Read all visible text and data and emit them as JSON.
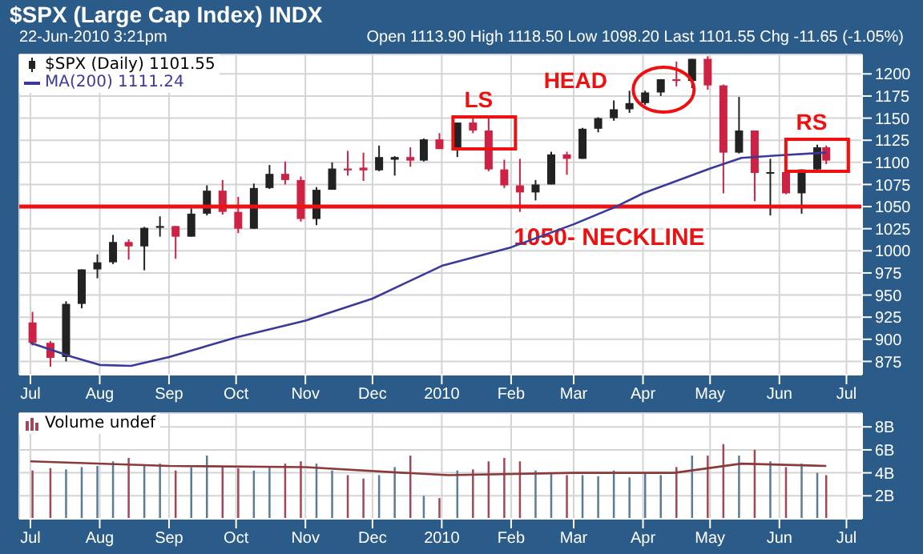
{
  "chart_data": [
    {
      "type": "candlestick",
      "title": "$SPX (Large Cap Index) INDX",
      "subtitle": "22-Jun-2010 3:21pm",
      "annotations": [
        "Open 1113.90 High 1118.50 Low 1098.20 Last 1101.55 Chg -11.65 (-1.05%)",
        "LS",
        "HEAD",
        "RS"
      ],
      "x": [
        "2009-07-02",
        "2009-07-10",
        "2009-07-17",
        "2009-07-24",
        "2009-07-31",
        "2009-08-07",
        "2009-08-14",
        "2009-08-21",
        "2009-08-28",
        "2009-09-04",
        "2009-09-11",
        "2009-09-18",
        "2009-09-25",
        "2009-10-02",
        "2009-10-09",
        "2009-10-16",
        "2009-10-23",
        "2009-10-30",
        "2009-11-06",
        "2009-11-13",
        "2009-11-20",
        "2009-11-27",
        "2009-12-04",
        "2009-12-11",
        "2009-12-18",
        "2009-12-24",
        "2009-12-31",
        "2010-01-08",
        "2010-01-15",
        "2010-01-22",
        "2010-01-29",
        "2010-02-05",
        "2010-02-12",
        "2010-02-19",
        "2010-02-26",
        "2010-03-05",
        "2010-03-12",
        "2010-03-19",
        "2010-03-26",
        "2010-04-02",
        "2010-04-09",
        "2010-04-16",
        "2010-04-23",
        "2010-04-30",
        "2010-05-07",
        "2010-05-14",
        "2010-05-21",
        "2010-05-28",
        "2010-06-04",
        "2010-06-11",
        "2010-06-18",
        "2010-06-22"
      ],
      "series": [
        {
          "name": "$SPX (Daily) 1101.55",
          "color": "#222222",
          "colors": [
            "#cc2244",
            "#cc2244",
            "#222222",
            "#222222",
            "#222222",
            "#222222",
            "#cc2244",
            "#222222",
            "#222222",
            "#cc2244",
            "#222222",
            "#222222",
            "#cc2244",
            "#cc2244",
            "#222222",
            "#222222",
            "#cc2244",
            "#cc2244",
            "#222222",
            "#222222",
            "#cc2244",
            "#cc2244",
            "#222222",
            "#222222",
            "#cc2244",
            "#222222",
            "#cc2244",
            "#222222",
            "#cc2244",
            "#cc2244",
            "#cc2244",
            "#cc2244",
            "#222222",
            "#222222",
            "#cc2244",
            "#222222",
            "#222222",
            "#222222",
            "#222222",
            "#222222",
            "#222222",
            "#cc2244",
            "#222222",
            "#cc2244",
            "#cc2244",
            "#222222",
            "#cc2244",
            "#222222",
            "#cc2244",
            "#222222",
            "#222222",
            "#cc2244"
          ],
          "ohlc": [
            [
              919,
              931,
              893,
              896
            ],
            [
              896,
              898,
              869,
              879
            ],
            [
              880,
              943,
              875,
              940
            ],
            [
              940,
              979,
              935,
              979
            ],
            [
              979,
              996,
              969,
              987
            ],
            [
              987,
              1018,
              985,
              1010
            ],
            [
              1010,
              1013,
              990,
              1005
            ],
            [
              1005,
              1027,
              978,
              1026
            ],
            [
              1026,
              1039,
              1016,
              1028
            ],
            [
              1028,
              1028,
              991,
              1016
            ],
            [
              1016,
              1048,
              1016,
              1042
            ],
            [
              1042,
              1074,
              1040,
              1068
            ],
            [
              1068,
              1080,
              1041,
              1044
            ],
            [
              1044,
              1061,
              1020,
              1025
            ],
            [
              1025,
              1076,
              1025,
              1071
            ],
            [
              1071,
              1097,
              1070,
              1087
            ],
            [
              1087,
              1101,
              1075,
              1080
            ],
            [
              1080,
              1084,
              1033,
              1036
            ],
            [
              1036,
              1072,
              1029,
              1069
            ],
            [
              1069,
              1100,
              1069,
              1093
            ],
            [
              1093,
              1113,
              1085,
              1091
            ],
            [
              1094,
              1111,
              1079,
              1091
            ],
            [
              1091,
              1119,
              1090,
              1106
            ],
            [
              1103,
              1107,
              1085,
              1106
            ],
            [
              1106,
              1117,
              1095,
              1102
            ],
            [
              1102,
              1127,
              1101,
              1126
            ],
            [
              1126,
              1133,
              1115,
              1115
            ],
            [
              1116,
              1145,
              1106,
              1145
            ],
            [
              1145,
              1150,
              1133,
              1136
            ],
            [
              1136,
              1150,
              1090,
              1092
            ],
            [
              1092,
              1103,
              1071,
              1074
            ],
            [
              1074,
              1104,
              1044,
              1066
            ],
            [
              1066,
              1080,
              1057,
              1075
            ],
            [
              1075,
              1112,
              1075,
              1109
            ],
            [
              1109,
              1112,
              1086,
              1104
            ],
            [
              1104,
              1139,
              1104,
              1138
            ],
            [
              1138,
              1151,
              1134,
              1150
            ],
            [
              1150,
              1170,
              1147,
              1160
            ],
            [
              1160,
              1181,
              1156,
              1167
            ],
            [
              1167,
              1181,
              1165,
              1179
            ],
            [
              1179,
              1194,
              1175,
              1194
            ],
            [
              1194,
              1214,
              1186,
              1192
            ],
            [
              1192,
              1217,
              1184,
              1217
            ],
            [
              1217,
              1220,
              1182,
              1187
            ],
            [
              1187,
              1188,
              1065,
              1111
            ],
            [
              1111,
              1174,
              1110,
              1136
            ],
            [
              1136,
              1136,
              1056,
              1088
            ],
            [
              1088,
              1104,
              1040,
              1089
            ],
            [
              1089,
              1106,
              1064,
              1065
            ],
            [
              1065,
              1092,
              1042,
              1092
            ],
            [
              1092,
              1120,
              1090,
              1117
            ],
            [
              1117,
              1119,
              1098,
              1102
            ]
          ]
        },
        {
          "name": "MA(200) 1111.24",
          "type": "line",
          "color": "#3a3a9a",
          "x": [
            "2009-07-01",
            "2009-07-20",
            "2009-08-01",
            "2009-08-15",
            "2009-09-01",
            "2009-10-01",
            "2009-11-01",
            "2009-12-01",
            "2010-01-01",
            "2010-02-01",
            "2010-03-01",
            "2010-03-20",
            "2010-04-01",
            "2010-05-01",
            "2010-05-15",
            "2010-06-01",
            "2010-06-22"
          ],
          "values": [
            896,
            880,
            871,
            870,
            880,
            902,
            921,
            946,
            983,
            1004,
            1030,
            1050,
            1065,
            1093,
            1105,
            1108,
            1111
          ]
        }
      ],
      "xlim": [
        "2009-06-26",
        "2010-07-08"
      ],
      "xticks": [
        {
          "value": "2009-07-01",
          "label": "Jul"
        },
        {
          "value": "2009-08-01",
          "label": "Aug"
        },
        {
          "value": "2009-09-01",
          "label": "Sep"
        },
        {
          "value": "2009-10-01",
          "label": "Oct"
        },
        {
          "value": "2009-11-01",
          "label": "Nov"
        },
        {
          "value": "2009-12-01",
          "label": "Dec"
        },
        {
          "value": "2010-01-01",
          "label": "2010"
        },
        {
          "value": "2010-02-01",
          "label": "Feb"
        },
        {
          "value": "2010-03-01",
          "label": "Mar"
        },
        {
          "value": "2010-04-01",
          "label": "Apr"
        },
        {
          "value": "2010-05-01",
          "label": "May"
        },
        {
          "value": "2010-06-01",
          "label": "Jun"
        },
        {
          "value": "2010-07-01",
          "label": "Jul"
        }
      ],
      "ylim": [
        860,
        1222
      ],
      "yticks": [
        875,
        900,
        925,
        950,
        975,
        1000,
        1025,
        1050,
        1075,
        1100,
        1125,
        1150,
        1175,
        1200
      ],
      "ref_lines": [
        {
          "axis": "y",
          "value": 1050,
          "label": "1050- NECKLINE",
          "color": "#ee1111"
        }
      ],
      "grid": true,
      "legend": "top left"
    },
    {
      "type": "bar",
      "x": [
        "2009-07-02",
        "2009-07-10",
        "2009-07-17",
        "2009-07-24",
        "2009-07-31",
        "2009-08-07",
        "2009-08-14",
        "2009-08-21",
        "2009-08-28",
        "2009-09-04",
        "2009-09-11",
        "2009-09-18",
        "2009-09-25",
        "2009-10-02",
        "2009-10-09",
        "2009-10-16",
        "2009-10-23",
        "2009-10-30",
        "2009-11-06",
        "2009-11-13",
        "2009-11-20",
        "2009-11-27",
        "2009-12-04",
        "2009-12-11",
        "2009-12-18",
        "2009-12-24",
        "2009-12-31",
        "2010-01-08",
        "2010-01-15",
        "2010-01-22",
        "2010-01-29",
        "2010-02-05",
        "2010-02-12",
        "2010-02-19",
        "2010-02-26",
        "2010-03-05",
        "2010-03-12",
        "2010-03-19",
        "2010-03-26",
        "2010-04-02",
        "2010-04-09",
        "2010-04-16",
        "2010-04-23",
        "2010-04-30",
        "2010-05-07",
        "2010-05-14",
        "2010-05-21",
        "2010-05-28",
        "2010-06-04",
        "2010-06-11",
        "2010-06-18",
        "2010-06-22"
      ],
      "series": [
        {
          "name": "Volume undef",
          "colors": [
            "#a0485a",
            "#a0485a",
            "#5a7c96",
            "#5a7c96",
            "#5a7c96",
            "#5a7c96",
            "#a0485a",
            "#5a7c96",
            "#5a7c96",
            "#a0485a",
            "#5a7c96",
            "#5a7c96",
            "#a0485a",
            "#a0485a",
            "#5a7c96",
            "#5a7c96",
            "#a0485a",
            "#a0485a",
            "#5a7c96",
            "#5a7c96",
            "#a0485a",
            "#a0485a",
            "#5a7c96",
            "#5a7c96",
            "#a0485a",
            "#5a7c96",
            "#a0485a",
            "#5a7c96",
            "#a0485a",
            "#a0485a",
            "#a0485a",
            "#a0485a",
            "#5a7c96",
            "#5a7c96",
            "#a0485a",
            "#5a7c96",
            "#5a7c96",
            "#5a7c96",
            "#5a7c96",
            "#5a7c96",
            "#5a7c96",
            "#a0485a",
            "#5a7c96",
            "#a0485a",
            "#a0485a",
            "#5a7c96",
            "#a0485a",
            "#5a7c96",
            "#a0485a",
            "#5a7c96",
            "#5a7c96",
            "#a0485a"
          ],
          "values": [
            4.2,
            4.4,
            4.3,
            4.5,
            4.6,
            5.0,
            5.3,
            4.6,
            4.8,
            4.2,
            4.5,
            5.5,
            4.5,
            4.4,
            4.2,
            4.5,
            4.8,
            5.0,
            4.8,
            4.2,
            3.8,
            3.5,
            3.8,
            4.5,
            5.5,
            2.0,
            1.8,
            4.2,
            4.3,
            5.0,
            5.3,
            5.0,
            4.2,
            4.0,
            3.8,
            3.8,
            3.7,
            4.2,
            3.6,
            4.0,
            3.8,
            4.5,
            5.5,
            5.5,
            6.5,
            5.5,
            6.0,
            5.0,
            4.5,
            4.8,
            4.0,
            3.8
          ]
        },
        {
          "type": "line",
          "color": "#8b3a3a",
          "x": [
            "2009-07-01",
            "2009-09-01",
            "2009-11-01",
            "2009-12-15",
            "2010-01-04",
            "2010-03-01",
            "2010-04-15",
            "2010-05-15",
            "2010-06-22"
          ],
          "values": [
            5.0,
            4.6,
            4.5,
            4.0,
            3.8,
            4.0,
            4.0,
            4.8,
            4.6
          ]
        }
      ],
      "xlim": [
        "2009-06-26",
        "2010-07-08"
      ],
      "xticks": [
        {
          "value": "2009-07-01",
          "label": "Jul"
        },
        {
          "value": "2009-08-01",
          "label": "Aug"
        },
        {
          "value": "2009-09-01",
          "label": "Sep"
        },
        {
          "value": "2009-10-01",
          "label": "Oct"
        },
        {
          "value": "2009-11-01",
          "label": "Nov"
        },
        {
          "value": "2009-12-01",
          "label": "Dec"
        },
        {
          "value": "2010-01-01",
          "label": "2010"
        },
        {
          "value": "2010-02-01",
          "label": "Feb"
        },
        {
          "value": "2010-03-01",
          "label": "Mar"
        },
        {
          "value": "2010-04-01",
          "label": "Apr"
        },
        {
          "value": "2010-05-01",
          "label": "May"
        },
        {
          "value": "2010-06-01",
          "label": "Jun"
        },
        {
          "value": "2010-07-01",
          "label": "Jul"
        }
      ],
      "ylim": [
        0,
        9.2
      ],
      "yticks": [
        {
          "value": 2,
          "label": "2B"
        },
        {
          "value": 4,
          "label": "4B"
        },
        {
          "value": 6,
          "label": "6B"
        },
        {
          "value": 8,
          "label": "8B"
        }
      ],
      "grid": true,
      "legend": "top left"
    }
  ]
}
